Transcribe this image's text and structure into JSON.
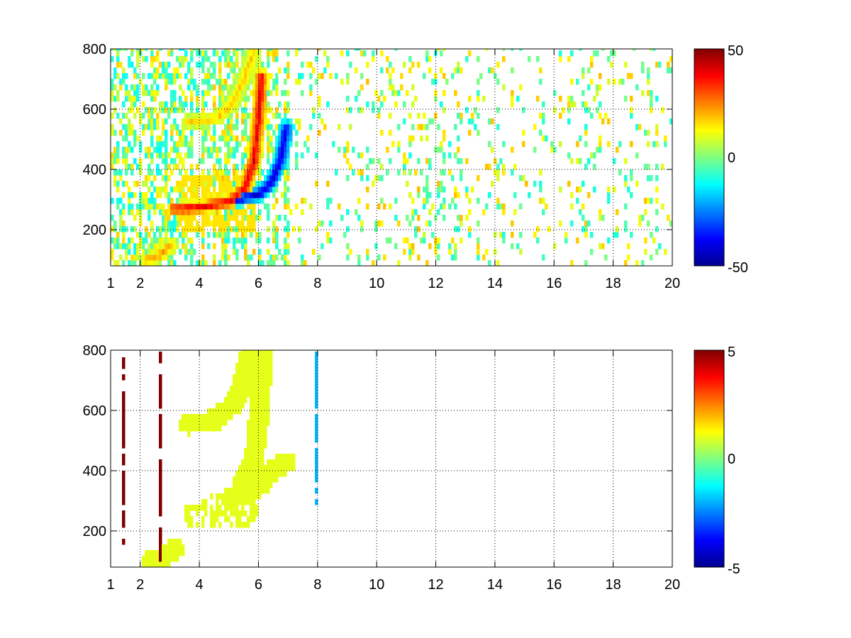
{
  "chart_data": [
    {
      "type": "heatmap",
      "title": "",
      "xlabel": "",
      "ylabel": "",
      "xlim": [
        1,
        20
      ],
      "ylim": [
        80,
        800
      ],
      "xticks": [
        1,
        2,
        4,
        6,
        8,
        10,
        12,
        14,
        16,
        18,
        20
      ],
      "xtick_labels": [
        "1",
        "2",
        "4",
        "6",
        "8",
        "10",
        "12",
        "14",
        "16",
        "18",
        "20"
      ],
      "yticks": [
        200,
        400,
        600,
        800
      ],
      "ytick_labels": [
        "200",
        "400",
        "600",
        "800"
      ],
      "grid": true,
      "colormap": "jet",
      "colorbar": {
        "range": [
          -50,
          50
        ],
        "tick_labels": [
          "50",
          "0",
          "-50"
        ]
      },
      "features": [
        {
          "kind": "ridge",
          "value": 40,
          "points": [
            [
              3.1,
              260
            ],
            [
              4,
              265
            ],
            [
              5,
              285
            ],
            [
              5.5,
              330
            ],
            [
              5.8,
              420
            ],
            [
              5.95,
              550
            ],
            [
              6.05,
              700
            ]
          ]
        },
        {
          "kind": "ridge",
          "value": -42,
          "points": [
            [
              5.2,
              290
            ],
            [
              6,
              310
            ],
            [
              6.4,
              350
            ],
            [
              6.7,
              420
            ],
            [
              6.9,
              530
            ]
          ]
        },
        {
          "kind": "ridge",
          "value": 18,
          "points": [
            [
              3.6,
              550
            ],
            [
              4.5,
              560
            ],
            [
              5,
              600
            ],
            [
              5.5,
              700
            ],
            [
              5.8,
              790
            ]
          ]
        },
        {
          "kind": "ridge",
          "value": 22,
          "points": [
            [
              2.2,
              90
            ],
            [
              2.6,
              105
            ],
            [
              3,
              140
            ]
          ]
        },
        {
          "kind": "blob",
          "value": 15,
          "x": [
            3.3,
            5.8
          ],
          "y": [
            190,
            380
          ]
        }
      ]
    },
    {
      "type": "heatmap",
      "title": "",
      "xlabel": "",
      "ylabel": "",
      "xlim": [
        1,
        20
      ],
      "ylim": [
        80,
        800
      ],
      "xticks": [
        1,
        2,
        4,
        6,
        8,
        10,
        12,
        14,
        16,
        18,
        20
      ],
      "xtick_labels": [
        "1",
        "2",
        "4",
        "6",
        "8",
        "10",
        "12",
        "14",
        "16",
        "18",
        "20"
      ],
      "yticks": [
        200,
        400,
        600,
        800
      ],
      "ytick_labels": [
        "200",
        "400",
        "600",
        "800"
      ],
      "grid": true,
      "colormap": "jet",
      "colorbar": {
        "range": [
          -5,
          5
        ],
        "tick_labels": [
          "5",
          "0",
          "-5"
        ]
      },
      "features": [
        {
          "kind": "region",
          "value": 1,
          "x": [
            3.4,
            5.9
          ],
          "y": [
            200,
            370
          ]
        },
        {
          "kind": "band",
          "value": 1,
          "points": [
            [
              5,
              300
            ],
            [
              6,
              340
            ],
            [
              6.5,
              400
            ],
            [
              6.9,
              420
            ]
          ]
        },
        {
          "kind": "band",
          "value": 1,
          "points": [
            [
              5.3,
              320
            ],
            [
              5.8,
              430
            ],
            [
              6,
              600
            ],
            [
              6.1,
              790
            ]
          ]
        },
        {
          "kind": "band",
          "value": 1,
          "points": [
            [
              3.6,
              545
            ],
            [
              4.5,
              560
            ],
            [
              5.2,
              620
            ],
            [
              5.7,
              790
            ]
          ]
        },
        {
          "kind": "band",
          "value": 1,
          "points": [
            [
              2.3,
              90
            ],
            [
              2.7,
              100
            ],
            [
              3.1,
              130
            ]
          ]
        },
        {
          "kind": "line",
          "value": 5,
          "x": 1.4,
          "y": [
            150,
            780
          ]
        },
        {
          "kind": "line",
          "value": 5,
          "x": 2.6,
          "y": [
            90,
            790
          ]
        },
        {
          "kind": "line",
          "value": -2,
          "x": 7.9,
          "y": [
            280,
            780
          ]
        }
      ]
    }
  ]
}
